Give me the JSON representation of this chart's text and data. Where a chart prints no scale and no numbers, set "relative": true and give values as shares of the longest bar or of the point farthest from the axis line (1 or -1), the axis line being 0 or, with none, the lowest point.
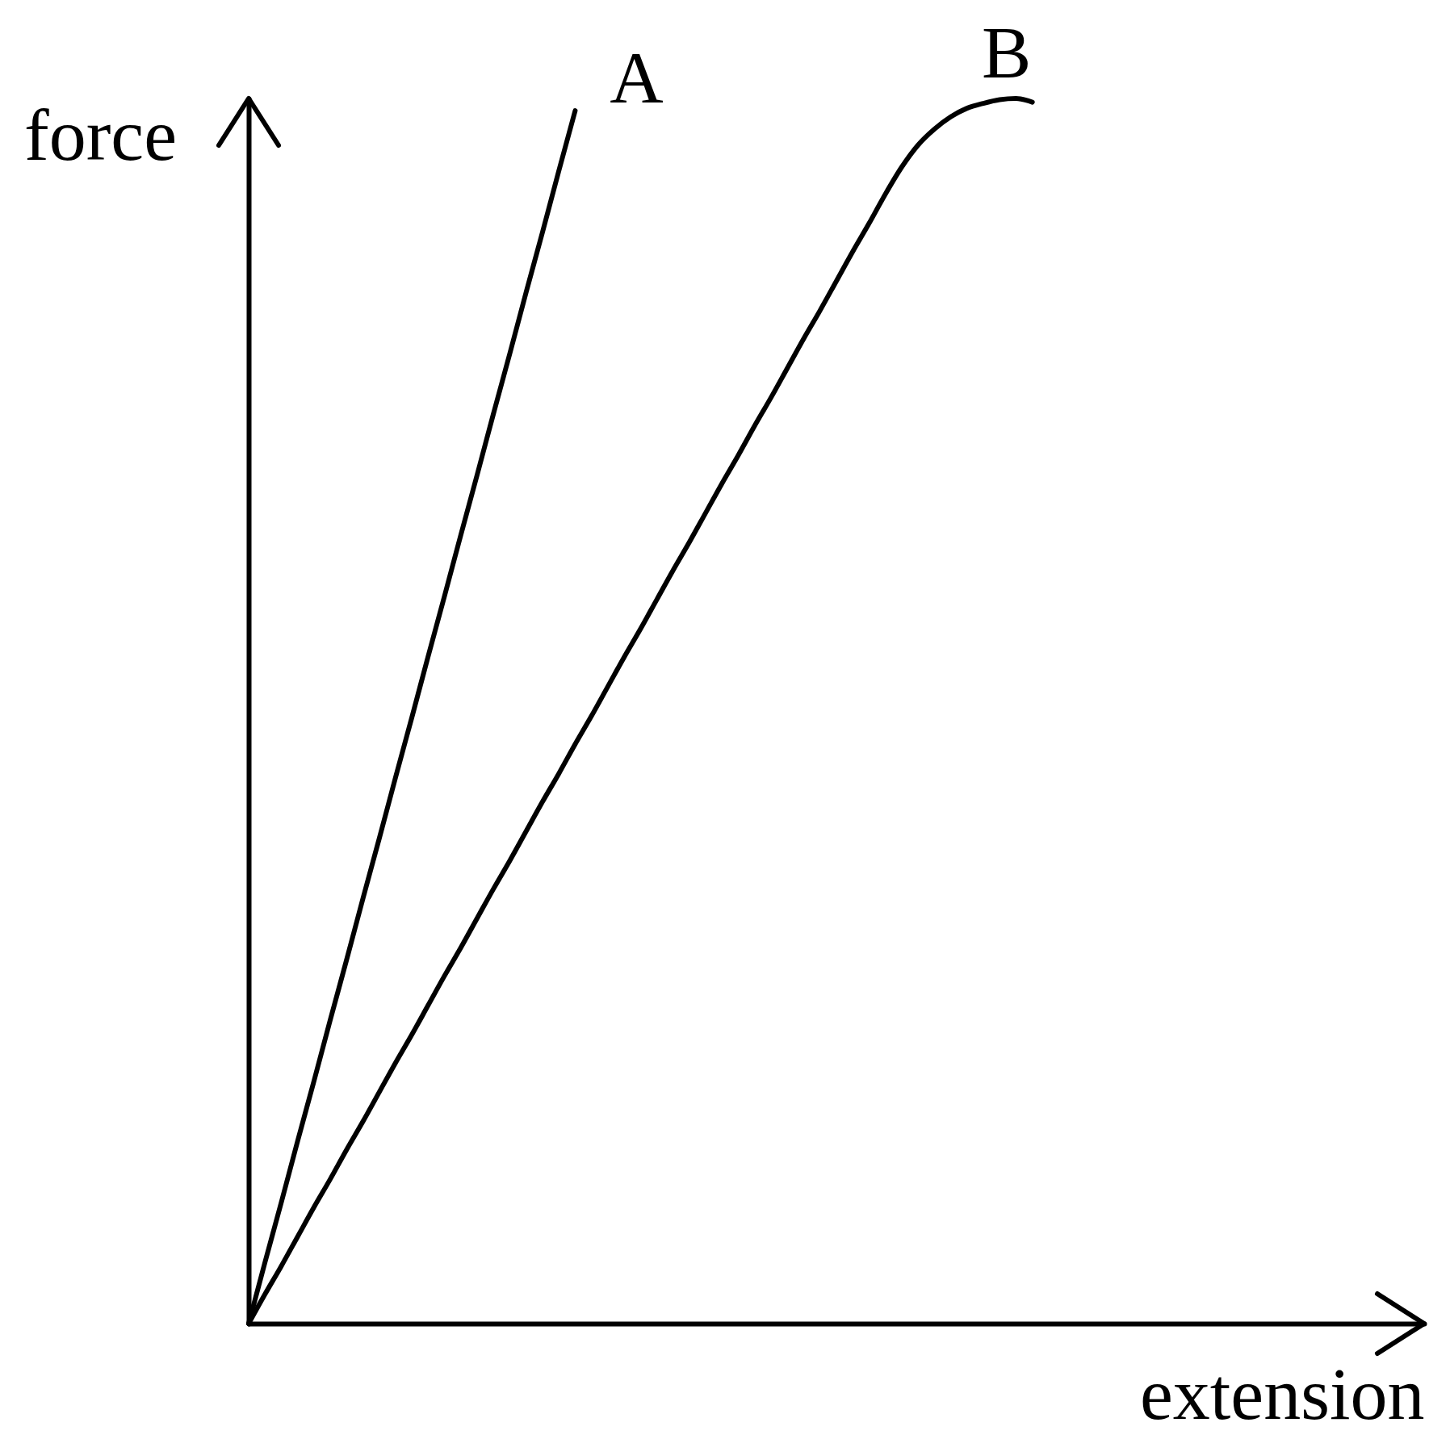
{
  "chart_data": {
    "type": "line",
    "xlabel": "extension",
    "ylabel": "force",
    "relative": true,
    "categories": [
      null,
      null,
      null,
      null,
      null,
      null,
      null,
      null,
      null,
      null,
      null,
      null,
      null,
      null,
      null,
      null,
      null,
      null,
      null,
      null,
      null,
      null,
      null,
      null,
      null,
      null,
      null,
      null,
      null,
      null,
      null,
      null,
      null,
      null,
      null,
      null,
      null,
      null,
      null,
      null,
      null,
      null,
      null,
      null,
      null,
      null,
      null,
      null,
      null,
      null,
      null,
      null,
      null,
      null,
      null,
      null,
      null,
      null,
      null,
      null,
      null,
      null,
      null,
      null,
      null,
      null,
      null,
      null,
      null,
      null,
      null,
      null,
      null
    ],
    "series": [
      {
        "name": "A",
        "color": "#000000",
        "values": [
          0,
          0.05,
          0.099,
          0.149,
          0.198,
          0.248,
          0.297,
          0.347,
          0.396,
          0.446,
          0.495,
          0.545,
          0.594,
          0.644,
          0.693,
          0.743,
          0.792,
          0.842,
          0.891,
          0.941,
          0.99,
          null,
          null,
          null,
          null,
          null,
          null,
          null,
          null,
          null,
          null,
          null,
          null,
          null,
          null,
          null,
          null,
          null,
          null,
          null,
          null,
          null,
          null,
          null,
          null,
          null,
          null,
          null,
          null,
          null,
          null,
          null,
          null,
          null,
          null,
          null,
          null,
          null,
          null,
          null,
          null,
          null,
          null,
          null,
          null,
          null,
          null,
          null,
          null,
          null,
          null,
          null,
          null
        ]
      },
      {
        "name": "B",
        "color": "#000000",
        "values": [
          0,
          0.024,
          0.047,
          0.071,
          0.095,
          0.118,
          0.142,
          0.165,
          0.189,
          0.213,
          0.236,
          0.26,
          0.284,
          0.307,
          0.331,
          0.355,
          0.378,
          0.402,
          0.426,
          0.449,
          0.473,
          0.496,
          0.52,
          0.544,
          0.567,
          0.591,
          0.615,
          0.638,
          0.662,
          0.686,
          0.709,
          0.733,
          0.756,
          0.78,
          0.804,
          0.827,
          0.851,
          0.875,
          0.898,
          0.922,
          0.944,
          0.962,
          0.975,
          0.985,
          0.992,
          0.996,
          0.999,
          1,
          0.997,
          null,
          null,
          null,
          null,
          null,
          null,
          null,
          null,
          null,
          null,
          null,
          null,
          null,
          null,
          null,
          null,
          null,
          null,
          null,
          null,
          null,
          null,
          null,
          null
        ]
      }
    ]
  }
}
